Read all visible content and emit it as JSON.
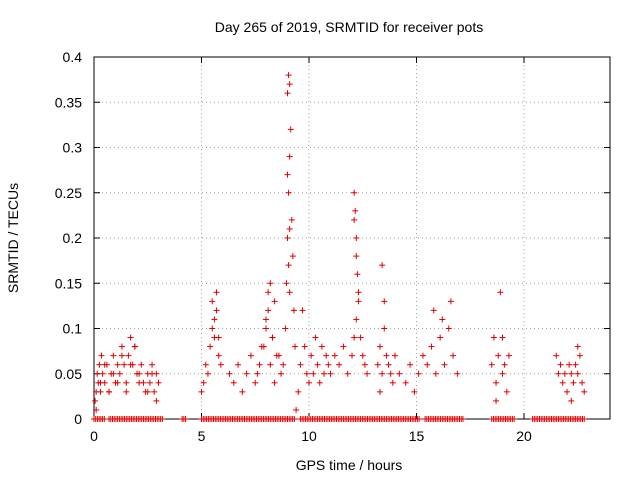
{
  "chart_data": {
    "type": "scatter",
    "title": "Day 265 of 2019, SRMTID for receiver pots",
    "xlabel": "GPS time / hours",
    "ylabel": "SRMTID / TECUs",
    "xlim": [
      0,
      24
    ],
    "ylim": [
      0,
      0.4
    ],
    "xticks": [
      0,
      5,
      10,
      15,
      20
    ],
    "xtick_labels": [
      "0",
      "5",
      "10",
      "15",
      "20"
    ],
    "yticks": [
      0,
      0.05,
      0.1,
      0.15,
      0.2,
      0.25,
      0.3,
      0.35,
      0.4
    ],
    "ytick_labels": [
      "0",
      "0.05",
      "0.1",
      "0.15",
      "0.2",
      "0.25",
      "0.3",
      "0.35",
      "0.4"
    ],
    "grid": true,
    "marker": "+",
    "series_color": "#e00000",
    "x": [
      0.05,
      0.1,
      0.15,
      0.2,
      0.25,
      0.3,
      0.35,
      0.4,
      0.5,
      0.6,
      0.7,
      0.8,
      0.9,
      1.0,
      1.1,
      1.2,
      1.3,
      1.4,
      1.5,
      1.6,
      1.7,
      1.8,
      1.9,
      2.0,
      2.1,
      2.2,
      2.4,
      2.5,
      2.6,
      2.7,
      2.8,
      2.9,
      3.0,
      0.1,
      0.3,
      0.5,
      0.7,
      0.9,
      1.1,
      1.3,
      1.5,
      1.7,
      1.9,
      2.1,
      2.3,
      2.5,
      2.7,
      2.9,
      5.0,
      5.1,
      5.2,
      5.3,
      5.4,
      5.5,
      5.6,
      5.7,
      5.8,
      5.5,
      5.6,
      5.7,
      5.8,
      5.9,
      6.3,
      6.5,
      6.7,
      6.9,
      7.1,
      7.3,
      7.5,
      7.7,
      7.9,
      8.0,
      8.1,
      8.2,
      8.3,
      8.4,
      8.5,
      7.6,
      7.8,
      8.0,
      8.1,
      8.2,
      8.3,
      8.4,
      8.6,
      8.7,
      8.8,
      8.9,
      8.95,
      9.0,
      9.05,
      9.1,
      9.15,
      9.2,
      9.25,
      9.3,
      9.35,
      9.0,
      9.05,
      9.1,
      9.0,
      9.1,
      9.05,
      9.1,
      9.4,
      9.5,
      9.6,
      9.7,
      9.8,
      9.9,
      10.0,
      10.1,
      10.2,
      10.3,
      10.4,
      10.5,
      10.6,
      10.7,
      10.8,
      10.9,
      11.0,
      11.2,
      11.4,
      11.6,
      11.8,
      12.0,
      12.1,
      12.2,
      12.3,
      12.4,
      12.5,
      12.6,
      12.7,
      12.1,
      12.15,
      12.2,
      12.25,
      12.3,
      12.1,
      12.2,
      13.2,
      13.3,
      13.4,
      13.5,
      13.6,
      13.7,
      13.8,
      13.9,
      14.0,
      14.2,
      13.4,
      13.5,
      13.3,
      14.5,
      14.7,
      14.9,
      15.1,
      15.3,
      15.5,
      15.7,
      15.9,
      16.1,
      16.3,
      16.5,
      16.7,
      16.9,
      15.8,
      16.2,
      16.6,
      18.5,
      18.6,
      18.7,
      18.8,
      18.9,
      19.0,
      19.1,
      19.2,
      19.3,
      18.7,
      19.0,
      21.5,
      21.6,
      21.7,
      21.8,
      21.9,
      22.0,
      22.1,
      22.2,
      22.3,
      22.4,
      22.5,
      22.6,
      22.7,
      22.8,
      22.2,
      22.5
    ],
    "y": [
      0.02,
      0.03,
      0.05,
      0.04,
      0.06,
      0.03,
      0.07,
      0.05,
      0.04,
      0.06,
      0.03,
      0.05,
      0.07,
      0.04,
      0.06,
      0.05,
      0.08,
      0.06,
      0.04,
      0.07,
      0.09,
      0.06,
      0.08,
      0.05,
      0.04,
      0.06,
      0.03,
      0.05,
      0.04,
      0.06,
      0.03,
      0.05,
      0.04,
      0.01,
      0.04,
      0.06,
      0.03,
      0.05,
      0.04,
      0.07,
      0.03,
      0.06,
      0.08,
      0.05,
      0.04,
      0.03,
      0.05,
      0.02,
      0.03,
      0.04,
      0.06,
      0.05,
      0.08,
      0.1,
      0.09,
      0.12,
      0.07,
      0.13,
      0.11,
      0.14,
      0.09,
      0.06,
      0.05,
      0.04,
      0.06,
      0.03,
      0.05,
      0.07,
      0.04,
      0.06,
      0.08,
      0.1,
      0.12,
      0.15,
      0.09,
      0.13,
      0.07,
      0.05,
      0.08,
      0.11,
      0.14,
      0.06,
      0.09,
      0.04,
      0.07,
      0.05,
      0.06,
      0.1,
      0.15,
      0.2,
      0.25,
      0.29,
      0.32,
      0.22,
      0.18,
      0.12,
      0.08,
      0.36,
      0.38,
      0.37,
      0.27,
      0.21,
      0.17,
      0.14,
      0.01,
      0.03,
      0.06,
      0.12,
      0.08,
      0.05,
      0.04,
      0.07,
      0.05,
      0.09,
      0.06,
      0.04,
      0.08,
      0.05,
      0.07,
      0.06,
      0.05,
      0.07,
      0.06,
      0.08,
      0.05,
      0.07,
      0.09,
      0.11,
      0.13,
      0.09,
      0.07,
      0.06,
      0.05,
      0.25,
      0.23,
      0.2,
      0.16,
      0.14,
      0.22,
      0.18,
      0.06,
      0.08,
      0.05,
      0.1,
      0.07,
      0.06,
      0.05,
      0.04,
      0.07,
      0.05,
      0.17,
      0.13,
      0.03,
      0.04,
      0.06,
      0.03,
      0.05,
      0.07,
      0.06,
      0.08,
      0.05,
      0.09,
      0.06,
      0.1,
      0.07,
      0.05,
      0.12,
      0.11,
      0.13,
      0.06,
      0.09,
      0.04,
      0.07,
      0.14,
      0.05,
      0.06,
      0.03,
      0.07,
      0.02,
      0.09,
      0.07,
      0.05,
      0.06,
      0.04,
      0.05,
      0.03,
      0.06,
      0.05,
      0.04,
      0.06,
      0.05,
      0.07,
      0.04,
      0.03,
      0.02,
      0.08
    ],
    "zero_band_segments": [
      [
        0.0,
        0.5
      ],
      [
        0.7,
        3.2
      ],
      [
        4.1,
        4.3
      ],
      [
        5.0,
        9.4
      ],
      [
        9.6,
        15.2
      ],
      [
        15.4,
        17.2
      ],
      [
        18.5,
        19.6
      ],
      [
        20.4,
        22.8
      ]
    ]
  }
}
